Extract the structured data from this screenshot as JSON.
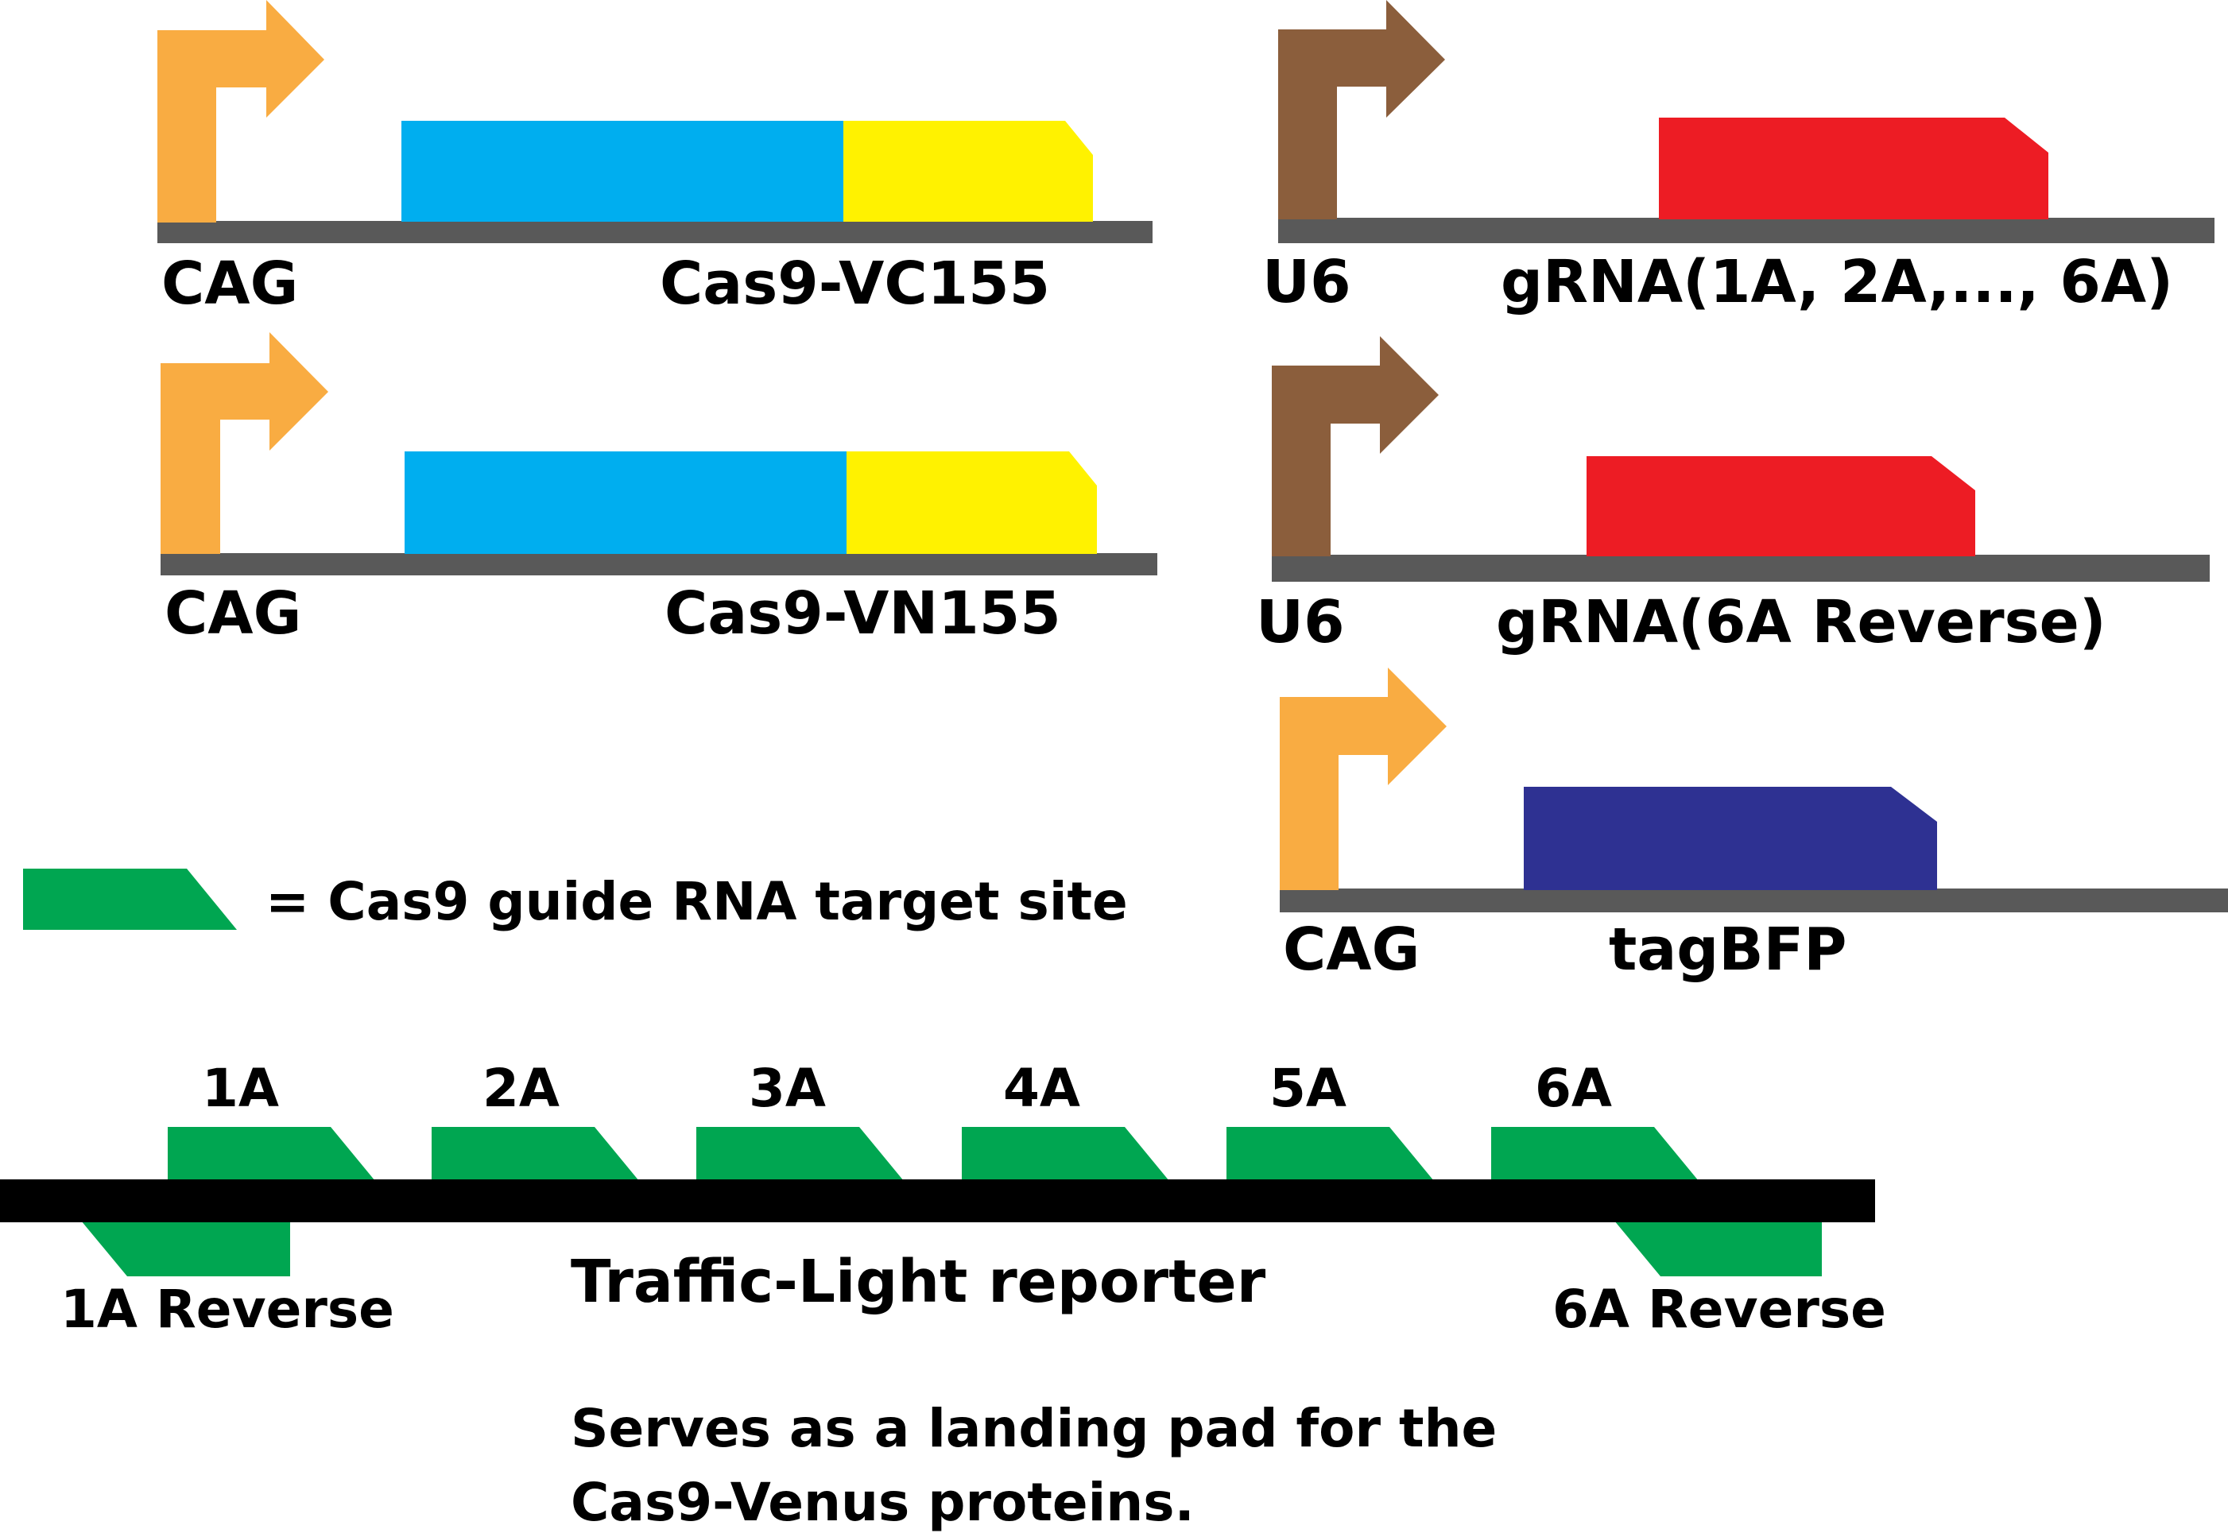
{
  "colors": {
    "cag_promoter": "#F9AC42",
    "u6_promoter": "#8B5E3C",
    "cas9": "#00AEEF",
    "venus": "#FFF200",
    "grna": "#ED1C24",
    "tagbfp": "#2E3192",
    "target_site": "#00A651",
    "backbone": "#595959",
    "reporter": "#000000"
  },
  "constructs": [
    {
      "promoter": "CAG",
      "gene": "Cas9-VC155"
    },
    {
      "promoter": "CAG",
      "gene": "Cas9-VN155"
    },
    {
      "promoter": "U6",
      "gene": "gRNA(1A, 2A,..., 6A)"
    },
    {
      "promoter": "U6",
      "gene": "gRNA(6A Reverse)"
    },
    {
      "promoter": "CAG",
      "gene": "tagBFP"
    }
  ],
  "legend": {
    "text": "= Cas9 guide RNA target site"
  },
  "reporter": {
    "sites_forward": [
      "1A",
      "2A",
      "3A",
      "4A",
      "5A",
      "6A"
    ],
    "sites_reverse": [
      "1A Reverse",
      "6A Reverse"
    ],
    "title": "Traffic-Light reporter",
    "description": [
      "Serves as a landing pad for the",
      "Cas9-Venus proteins."
    ]
  }
}
